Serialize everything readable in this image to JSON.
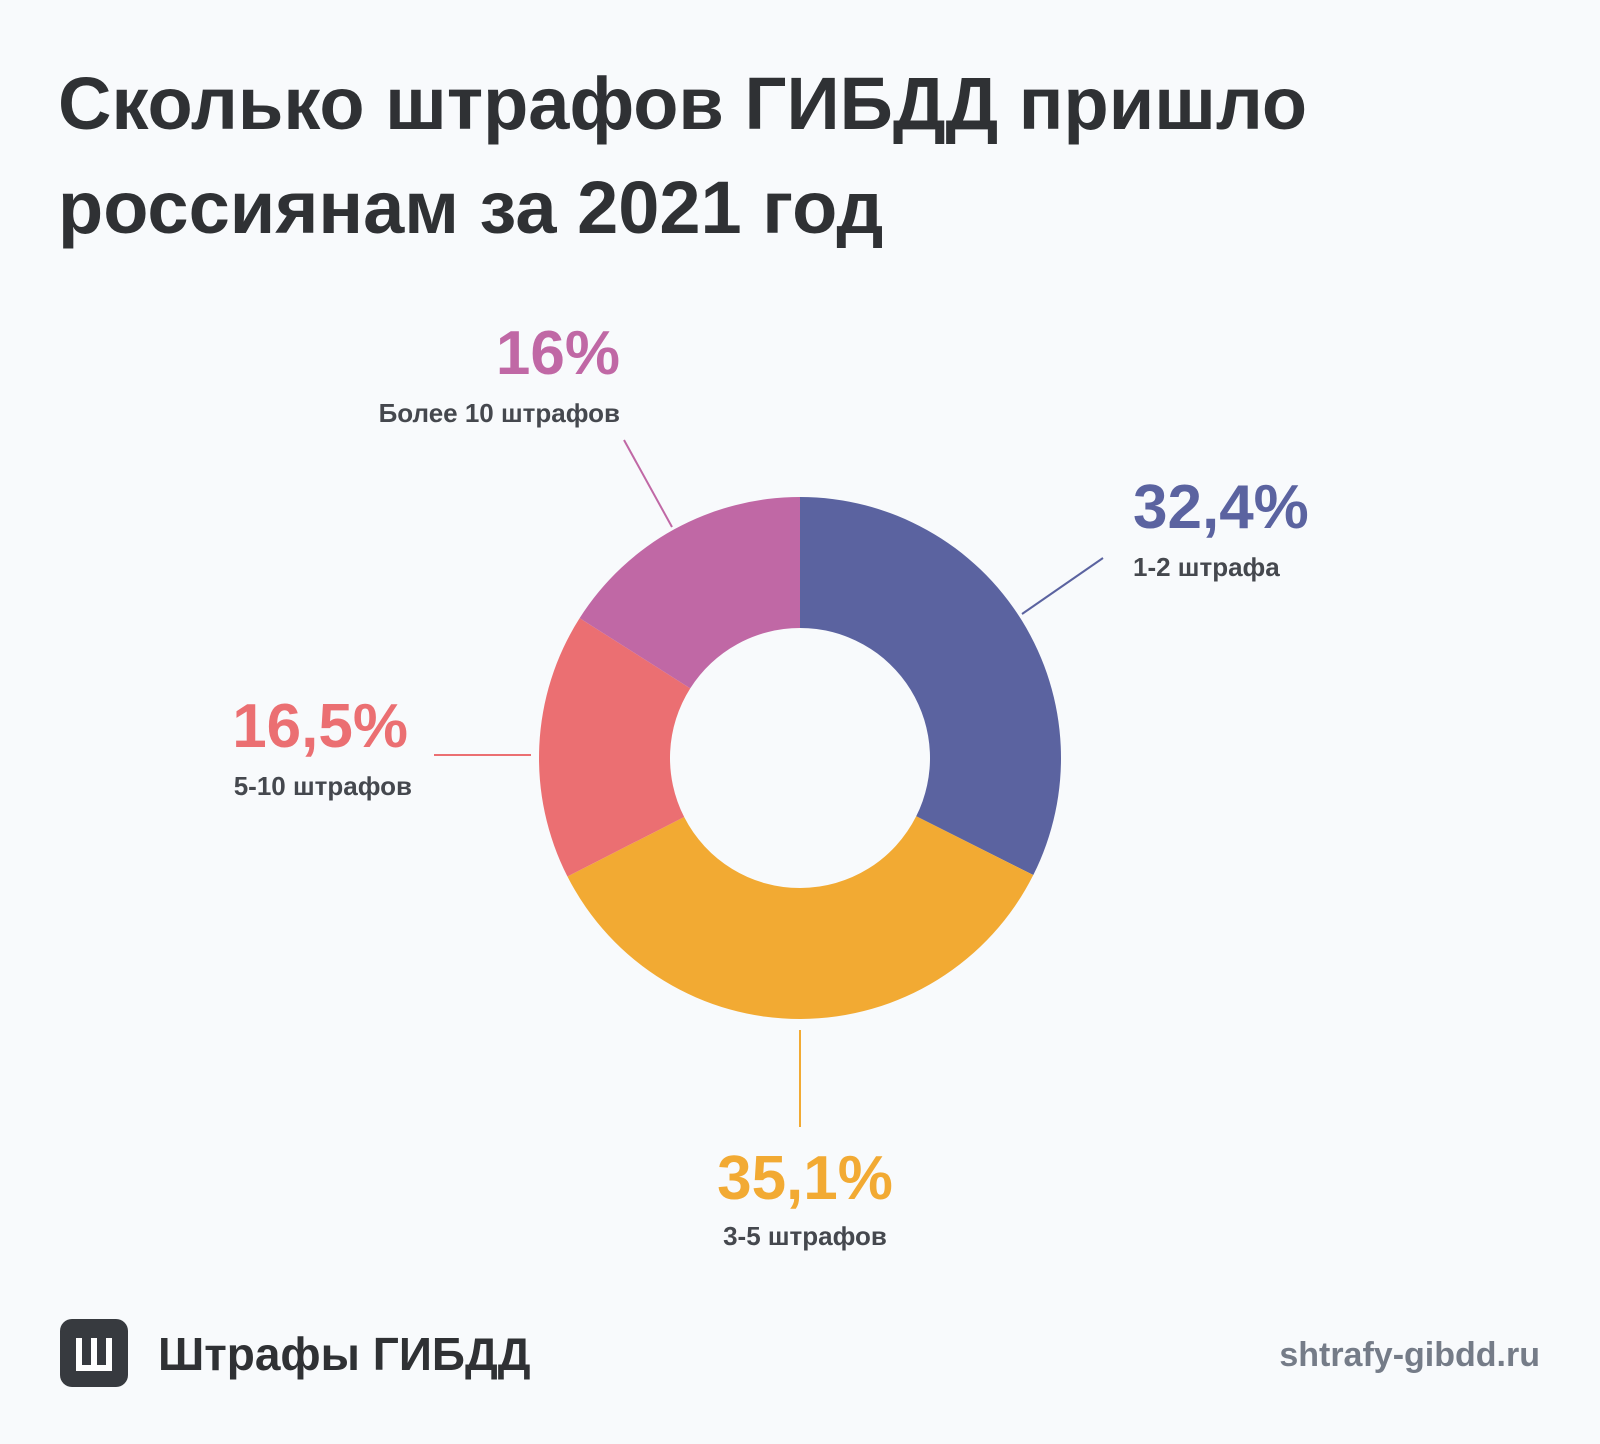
{
  "title": "Сколько штрафов ГИБДД пришло россиянам за 2021 год",
  "footer": {
    "brand": "Штрафы ГИБДД",
    "logo_icon": "sha-letter-icon",
    "site": "shtrafy-gibdd.ru"
  },
  "chart_data": {
    "type": "pie",
    "variant": "donut",
    "title": "Сколько штрафов ГИБДД пришло россиянам за 2021 год",
    "slices": [
      {
        "label": "1-2 штрафа",
        "value": 32.4,
        "value_label": "32,4%",
        "color": "#5b63a0"
      },
      {
        "label": "3-5 штрафов",
        "value": 35.1,
        "value_label": "35,1%",
        "color": "#f2aa33"
      },
      {
        "label": "5-10 штрафов",
        "value": 16.5,
        "value_label": "16,5%",
        "color": "#eb6f72"
      },
      {
        "label": "Более 10 штрафов",
        "value": 16,
        "value_label": "16%",
        "color": "#c068a5"
      }
    ]
  }
}
